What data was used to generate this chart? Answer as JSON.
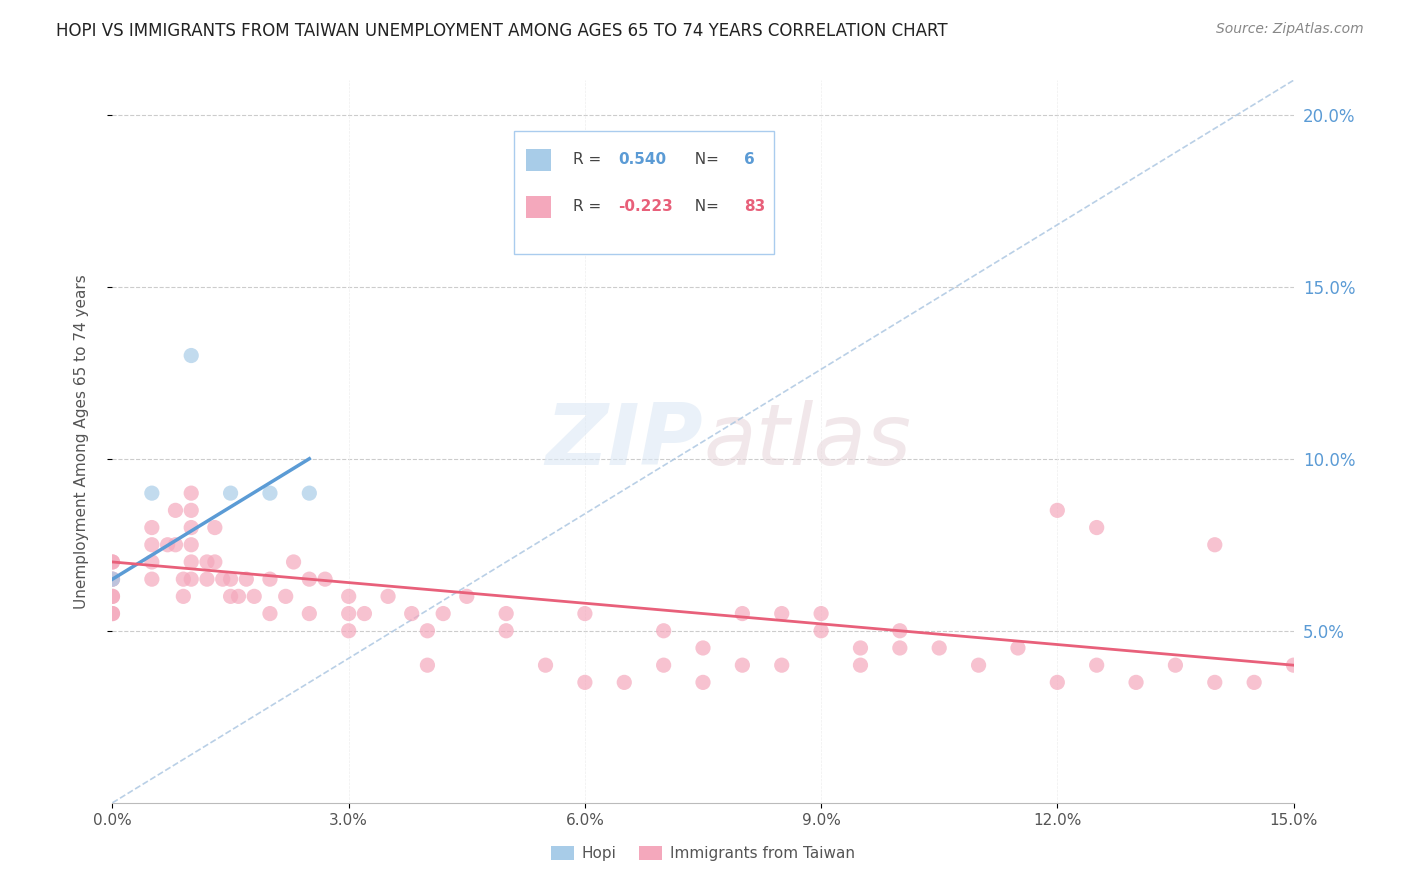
{
  "title": "HOPI VS IMMIGRANTS FROM TAIWAN UNEMPLOYMENT AMONG AGES 65 TO 74 YEARS CORRELATION CHART",
  "source": "Source: ZipAtlas.com",
  "ylabel": "Unemployment Among Ages 65 to 74 years",
  "xlim": [
    0.0,
    0.15
  ],
  "ylim": [
    0.0,
    0.21
  ],
  "xticks": [
    0.0,
    0.03,
    0.06,
    0.09,
    0.12,
    0.15
  ],
  "xtick_labels": [
    "0.0%",
    "3.0%",
    "6.0%",
    "9.0%",
    "12.0%",
    "15.0%"
  ],
  "yticks": [
    0.05,
    0.1,
    0.15,
    0.2
  ],
  "ytick_labels": [
    "5.0%",
    "10.0%",
    "15.0%",
    "20.0%"
  ],
  "hopi_color": "#A8CCE8",
  "taiwan_color": "#F4A8BC",
  "hopi_line_color": "#5B9BD5",
  "taiwan_line_color": "#E8607A",
  "dash_line_color": "#A8C4E0",
  "hopi_R": 0.54,
  "hopi_N": 6,
  "taiwan_R": -0.223,
  "taiwan_N": 83,
  "watermark_zip": "ZIP",
  "watermark_atlas": "atlas",
  "hopi_scatter_x": [
    0.0,
    0.005,
    0.01,
    0.015,
    0.02,
    0.025
  ],
  "hopi_scatter_y": [
    0.065,
    0.09,
    0.13,
    0.09,
    0.09,
    0.09
  ],
  "hopi_trend_x": [
    0.0,
    0.025
  ],
  "hopi_trend_y": [
    0.065,
    0.1
  ],
  "taiwan_trend_x": [
    0.0,
    0.15
  ],
  "taiwan_trend_y": [
    0.07,
    0.04
  ],
  "dash_line_x": [
    0.0,
    0.15
  ],
  "dash_line_y": [
    0.0,
    0.21
  ],
  "taiwan_scatter_x": [
    0.0,
    0.0,
    0.0,
    0.0,
    0.0,
    0.0,
    0.0,
    0.0,
    0.005,
    0.005,
    0.005,
    0.005,
    0.007,
    0.008,
    0.008,
    0.009,
    0.009,
    0.01,
    0.01,
    0.01,
    0.01,
    0.01,
    0.01,
    0.012,
    0.012,
    0.013,
    0.013,
    0.014,
    0.015,
    0.015,
    0.016,
    0.017,
    0.018,
    0.02,
    0.02,
    0.022,
    0.023,
    0.025,
    0.025,
    0.027,
    0.03,
    0.03,
    0.03,
    0.032,
    0.035,
    0.038,
    0.04,
    0.04,
    0.042,
    0.045,
    0.05,
    0.05,
    0.055,
    0.06,
    0.06,
    0.065,
    0.07,
    0.07,
    0.075,
    0.075,
    0.08,
    0.08,
    0.085,
    0.085,
    0.09,
    0.09,
    0.095,
    0.095,
    0.1,
    0.1,
    0.105,
    0.11,
    0.115,
    0.12,
    0.12,
    0.125,
    0.125,
    0.13,
    0.135,
    0.14,
    0.14,
    0.145,
    0.15
  ],
  "taiwan_scatter_y": [
    0.07,
    0.07,
    0.065,
    0.065,
    0.06,
    0.06,
    0.055,
    0.055,
    0.08,
    0.075,
    0.07,
    0.065,
    0.075,
    0.085,
    0.075,
    0.065,
    0.06,
    0.09,
    0.085,
    0.08,
    0.075,
    0.07,
    0.065,
    0.07,
    0.065,
    0.08,
    0.07,
    0.065,
    0.065,
    0.06,
    0.06,
    0.065,
    0.06,
    0.065,
    0.055,
    0.06,
    0.07,
    0.065,
    0.055,
    0.065,
    0.06,
    0.055,
    0.05,
    0.055,
    0.06,
    0.055,
    0.05,
    0.04,
    0.055,
    0.06,
    0.05,
    0.055,
    0.04,
    0.035,
    0.055,
    0.035,
    0.05,
    0.04,
    0.045,
    0.035,
    0.055,
    0.04,
    0.055,
    0.04,
    0.05,
    0.055,
    0.045,
    0.04,
    0.05,
    0.045,
    0.045,
    0.04,
    0.045,
    0.035,
    0.085,
    0.04,
    0.08,
    0.035,
    0.04,
    0.035,
    0.075,
    0.035,
    0.04
  ]
}
